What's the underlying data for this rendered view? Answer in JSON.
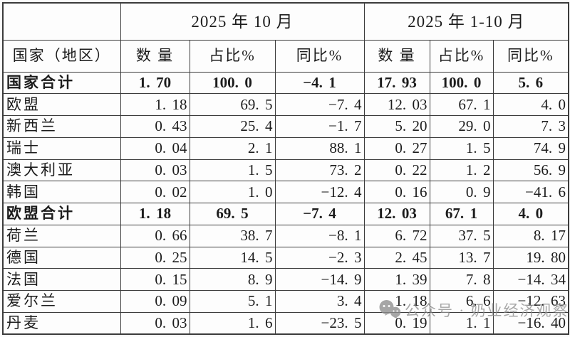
{
  "chart_data": {
    "type": "table",
    "column_groups": [
      {
        "label": "2025 年 10 月",
        "span": 3
      },
      {
        "label": "2025 年 1-10 月",
        "span": 3
      }
    ],
    "row_header": "国家（地区）",
    "columns": [
      "数 量",
      "占比%",
      "同比%",
      "数 量",
      "占比%",
      "同比%"
    ],
    "rows": [
      {
        "label": "国家合计",
        "total": true,
        "values": [
          "1.70",
          "100.0",
          "-4.1",
          "17.93",
          "100.0",
          "5.6"
        ]
      },
      {
        "label": "欧盟",
        "total": false,
        "values": [
          "1.18",
          "69.5",
          "-7.4",
          "12.03",
          "67.1",
          "4.0"
        ]
      },
      {
        "label": "新西兰",
        "total": false,
        "values": [
          "0.43",
          "25.4",
          "-1.7",
          "5.20",
          "29.0",
          "7.3"
        ]
      },
      {
        "label": "瑞士",
        "total": false,
        "values": [
          "0.04",
          "2.1",
          "88.1",
          "0.27",
          "1.5",
          "74.9"
        ]
      },
      {
        "label": "澳大利亚",
        "total": false,
        "values": [
          "0.03",
          "1.5",
          "73.2",
          "0.22",
          "1.2",
          "56.9"
        ]
      },
      {
        "label": "韩国",
        "total": false,
        "values": [
          "0.02",
          "1.0",
          "-12.4",
          "0.16",
          "0.9",
          "-41.6"
        ]
      },
      {
        "label": "欧盟合计",
        "total": true,
        "values": [
          "1.18",
          "69.5",
          "-7.4",
          "12.03",
          "67.1",
          "4.0"
        ]
      },
      {
        "label": "荷兰",
        "total": false,
        "values": [
          "0.66",
          "38.7",
          "-8.1",
          "6.72",
          "37.5",
          "8.17"
        ]
      },
      {
        "label": "德国",
        "total": false,
        "values": [
          "0.25",
          "14.5",
          "-2.3",
          "2.45",
          "13.7",
          "19.80"
        ]
      },
      {
        "label": "法国",
        "total": false,
        "values": [
          "0.15",
          "8.9",
          "-14.9",
          "1.39",
          "7.8",
          "-14.34"
        ]
      },
      {
        "label": "爱尔兰",
        "total": false,
        "values": [
          "0.09",
          "5.1",
          "3.4",
          "1.18",
          "6.6",
          "-12.63"
        ]
      },
      {
        "label": "丹麦",
        "total": false,
        "values": [
          "0.03",
          "1.6",
          "-23.5",
          "0.19",
          "1.1",
          "-16.40"
        ]
      }
    ]
  },
  "watermark": {
    "icon": "wechat-icon",
    "text": "公众号 · 奶业经济观察",
    "color": "#8e8e8e"
  },
  "colors": {
    "border": "#3c3c3c",
    "text": "#1c1c1c",
    "table_background": "#fdfdfd",
    "page_background": "#fbfbfb"
  }
}
